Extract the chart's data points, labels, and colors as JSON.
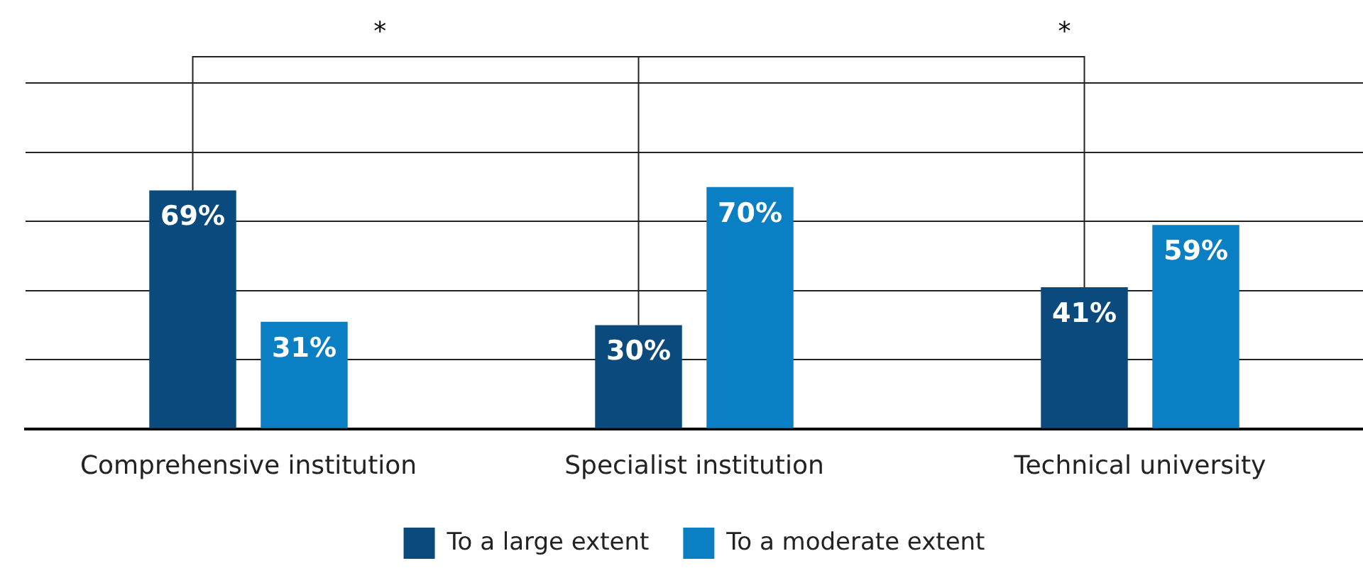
{
  "chart_data": {
    "type": "bar",
    "categories": [
      "Comprehensive institution",
      "Specialist institution",
      "Technical university"
    ],
    "series": [
      {
        "name": "To a large extent",
        "color": "#0b4a7d",
        "values": [
          69,
          30,
          41
        ],
        "value_labels": [
          "69%",
          "30%",
          "41%"
        ]
      },
      {
        "name": "To a moderate extent",
        "color": "#0a7fc4",
        "values": [
          31,
          70,
          59
        ],
        "value_labels": [
          "31%",
          "70%",
          "59%"
        ]
      }
    ],
    "yticks": [
      {
        "value": 0,
        "label": null
      },
      {
        "value": 20,
        "label": null
      },
      {
        "value": 40,
        "label": null
      },
      {
        "value": 60,
        "label": null
      },
      {
        "value": 80,
        "label": null
      },
      {
        "value": 100,
        "label": null
      }
    ],
    "annotations": [
      "*",
      "*"
    ],
    "grid": "y",
    "legend": "bottom",
    "tick_labels": "x"
  }
}
